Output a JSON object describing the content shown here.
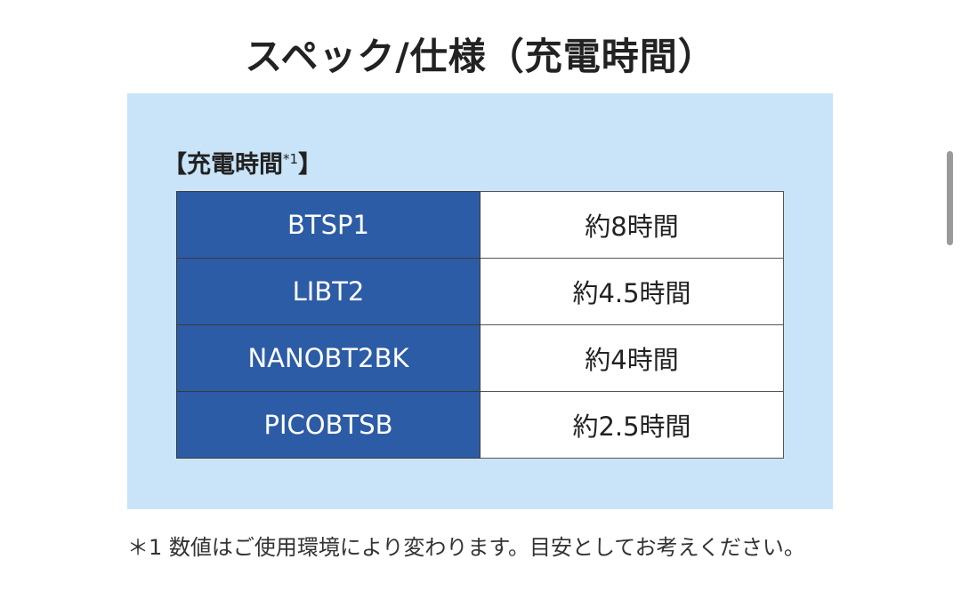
{
  "title": "スペック/仕様（充電時間）",
  "section": {
    "open": "【",
    "label": "充電時間",
    "note": "*1",
    "close": "】"
  },
  "table": {
    "rows": [
      [
        "BTSP1",
        "約8時間"
      ],
      [
        "LIBT2",
        "約4.5時間"
      ],
      [
        "NANOBT2BK",
        "約4時間"
      ],
      [
        "PICOBTSB",
        "約2.5時間"
      ]
    ]
  },
  "footnote": "＊1 数値はご使用環境により変わります。目安としてお考えください。"
}
